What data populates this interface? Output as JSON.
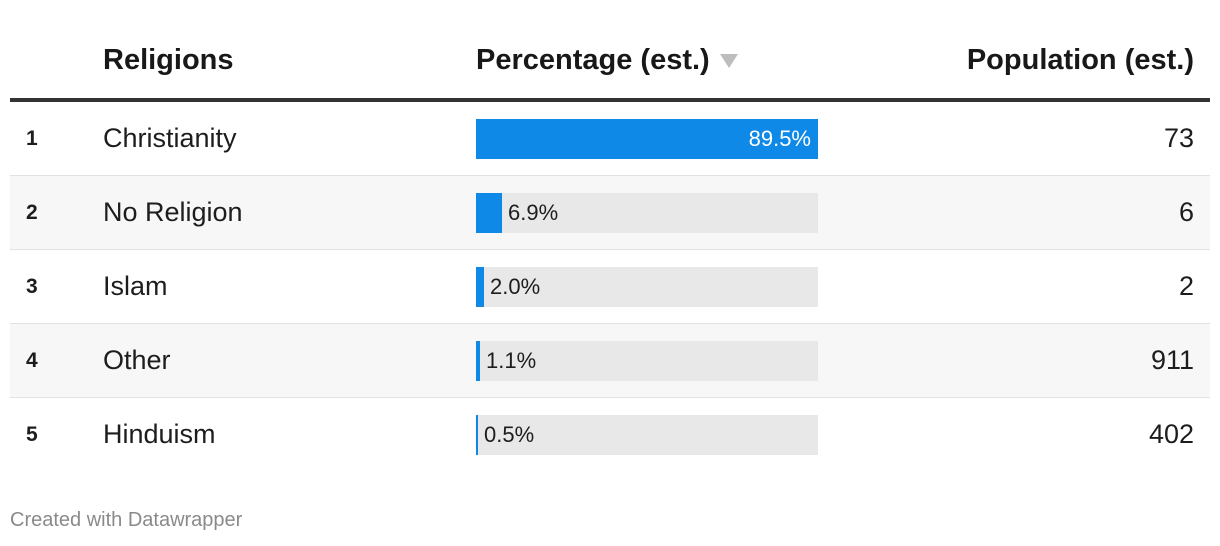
{
  "chart_data": {
    "type": "table",
    "columns": [
      "Religions",
      "Percentage (est.)",
      "Population (est.)"
    ],
    "rows": [
      {
        "rank": "1",
        "religion": "Christianity",
        "percentage": 89.5,
        "percentage_label": "89.5%",
        "population": "73"
      },
      {
        "rank": "2",
        "religion": "No Religion",
        "percentage": 6.9,
        "percentage_label": "6.9%",
        "population": "6"
      },
      {
        "rank": "3",
        "religion": "Islam",
        "percentage": 2.0,
        "percentage_label": "2.0%",
        "population": "2"
      },
      {
        "rank": "4",
        "religion": "Other",
        "percentage": 1.1,
        "percentage_label": "1.1%",
        "population": "911"
      },
      {
        "rank": "5",
        "religion": "Hinduism",
        "percentage": 0.5,
        "percentage_label": "0.5%",
        "population": "402"
      }
    ],
    "bar_max": 89.5,
    "sort_column": "Percentage (est.)",
    "sort_icon": "sort-descending-icon"
  },
  "colors": {
    "bar": "#0e89e8",
    "bar_track": "#e8e8e8",
    "header_rule": "#333333",
    "stripe": "#f7f7f7",
    "footer_text": "#8a8a8a"
  },
  "footer": {
    "credit": "Created with Datawrapper"
  }
}
